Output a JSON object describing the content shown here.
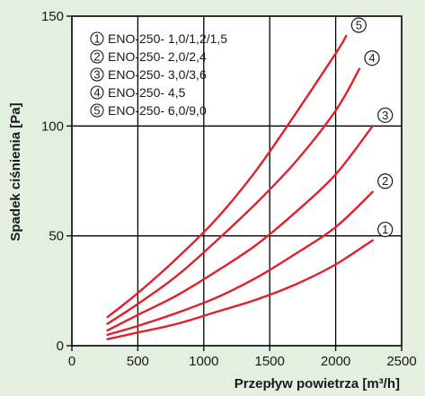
{
  "chart_data": {
    "type": "line",
    "xlabel": "Przepływ powietrza [m³/h]",
    "ylabel": "Spadek ciśnienia [Pa]",
    "xlim": [
      0,
      2500
    ],
    "ylim": [
      0,
      150
    ],
    "x_ticks": [
      "0",
      "500",
      "1000",
      "1500",
      "2000",
      "2500"
    ],
    "y_ticks": [
      "0",
      "50",
      "100",
      "150"
    ],
    "grid": true,
    "legend_position": "top-left",
    "line_color": "#e0202a",
    "series": [
      {
        "name": "ENO-250- 1,0/1,2/1,5",
        "marker": "1",
        "x": [
          270,
          500,
          800,
          1100,
          1400,
          1700,
          2000,
          2280
        ],
        "y": [
          3,
          6,
          10,
          15.5,
          21,
          28,
          37,
          48
        ]
      },
      {
        "name": "ENO-250- 2,0/2,4",
        "marker": "2",
        "x": [
          270,
          500,
          800,
          1100,
          1400,
          1700,
          2000,
          2280
        ],
        "y": [
          5,
          9,
          15,
          22,
          31,
          42,
          54,
          70
        ]
      },
      {
        "name": "ENO-250- 3,0/3,6",
        "marker": "3",
        "x": [
          270,
          500,
          800,
          1100,
          1400,
          1700,
          2000,
          2280
        ],
        "y": [
          7,
          14,
          23,
          34,
          46,
          61,
          78,
          100
        ]
      },
      {
        "name": "ENO-250- 4,5",
        "marker": "4",
        "x": [
          270,
          500,
          800,
          1100,
          1400,
          1700,
          2000,
          2180
        ],
        "y": [
          10,
          19,
          32,
          48,
          65,
          84,
          107,
          126
        ]
      },
      {
        "name": "ENO-250- 6,0/9,0",
        "marker": "5",
        "x": [
          270,
          500,
          800,
          1100,
          1400,
          1700,
          2000,
          2080
        ],
        "y": [
          13,
          24,
          40,
          58,
          80,
          106,
          133,
          141
        ]
      }
    ]
  }
}
